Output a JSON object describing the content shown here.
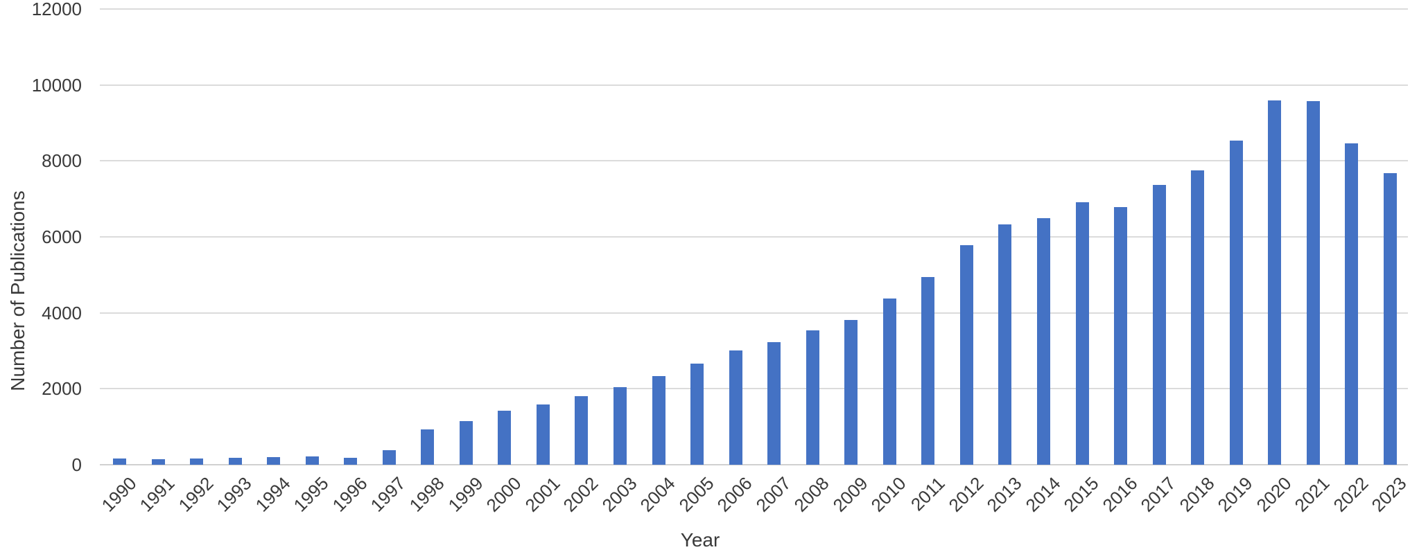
{
  "chart_data": {
    "type": "bar",
    "title": "",
    "xlabel": "Year",
    "ylabel": "Number of Publications",
    "categories": [
      "1990",
      "1991",
      "1992",
      "1993",
      "1994",
      "1995",
      "1996",
      "1997",
      "1998",
      "1999",
      "2000",
      "2001",
      "2002",
      "2003",
      "2004",
      "2005",
      "2006",
      "2007",
      "2008",
      "2009",
      "2010",
      "2011",
      "2012",
      "2013",
      "2014",
      "2015",
      "2016",
      "2017",
      "2018",
      "2019",
      "2020",
      "2021",
      "2022",
      "2023"
    ],
    "values": [
      165,
      150,
      165,
      190,
      205,
      220,
      175,
      390,
      930,
      1140,
      1420,
      1580,
      1800,
      2040,
      2330,
      2660,
      3010,
      3220,
      3530,
      3820,
      4370,
      4940,
      5790,
      6330,
      6490,
      6920,
      6790,
      7360,
      7750,
      8540,
      9600,
      9580,
      8470,
      7680
    ],
    "yticks": [
      0,
      2000,
      4000,
      6000,
      8000,
      10000,
      12000
    ],
    "ylim": [
      0,
      12000
    ],
    "grid": "horizontal",
    "legend": "none",
    "bar_color": "#4472C4",
    "gridline_color": "#DBDBDB",
    "axis_line_color": "#D0D0D0",
    "text_color": "#3a3a3a"
  }
}
